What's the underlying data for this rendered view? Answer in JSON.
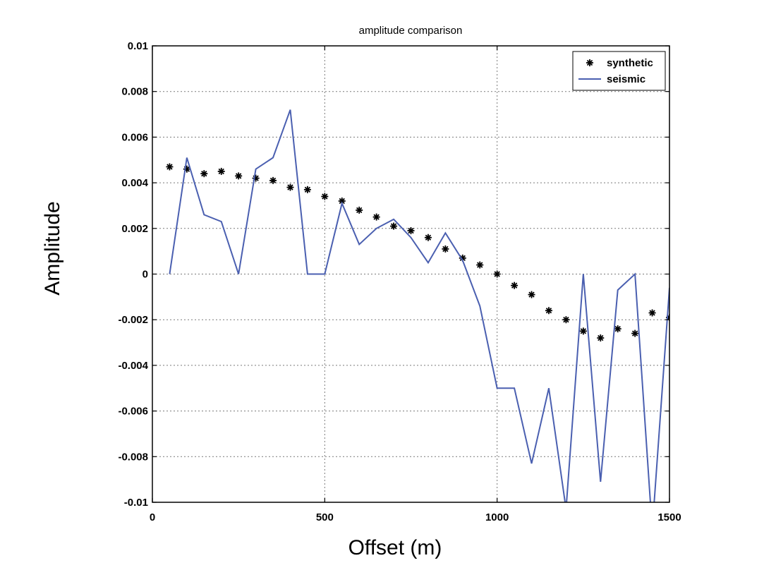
{
  "chart_data": {
    "type": "line",
    "title": "amplitude comparison",
    "xlabel": "Offset (m)",
    "ylabel": "Amplitude",
    "xlim": [
      0,
      1500
    ],
    "ylim": [
      -0.01,
      0.01
    ],
    "x_ticks": [
      0,
      500,
      1000,
      1500
    ],
    "x_tick_labels": [
      "0",
      "500",
      "1000",
      "1500"
    ],
    "y_ticks": [
      0.01,
      0.008,
      0.006,
      0.004,
      0.002,
      0,
      -0.002,
      -0.004,
      -0.006,
      -0.008,
      -0.01
    ],
    "y_tick_labels": [
      "0.01",
      "0.008",
      "0.006",
      "0.004",
      "0.002",
      "0",
      "-0.002",
      "-0.004",
      "-0.006",
      "-0.008",
      "-0.01"
    ],
    "grid": true,
    "legend_position": "top-right",
    "series": [
      {
        "name": "synthetic",
        "style": "markers",
        "marker": "*",
        "color": "#000000",
        "x": [
          50,
          100,
          150,
          200,
          250,
          300,
          350,
          400,
          450,
          500,
          550,
          600,
          650,
          700,
          750,
          800,
          850,
          900,
          950,
          1000,
          1050,
          1100,
          1150,
          1200,
          1250,
          1300,
          1350,
          1400,
          1450,
          1500
        ],
        "y": [
          0.0047,
          0.0046,
          0.0044,
          0.0045,
          0.0043,
          0.0042,
          0.0041,
          0.0038,
          0.0037,
          0.0034,
          0.0032,
          0.0028,
          0.0025,
          0.0021,
          0.0019,
          0.0016,
          0.0011,
          0.0007,
          0.0004,
          0.0,
          -0.0005,
          -0.0009,
          -0.0016,
          -0.002,
          -0.0025,
          -0.0028,
          -0.0024,
          -0.0026,
          -0.0017,
          -0.0019
        ]
      },
      {
        "name": "seismic",
        "style": "line",
        "color": "#4a5fb0",
        "x": [
          50,
          100,
          150,
          200,
          250,
          300,
          350,
          400,
          450,
          500,
          550,
          600,
          650,
          700,
          750,
          800,
          850,
          900,
          950,
          1000,
          1050,
          1100,
          1150,
          1200,
          1250,
          1300,
          1350,
          1400,
          1450,
          1500
        ],
        "y": [
          0.0,
          0.0051,
          0.0026,
          0.0023,
          0.0,
          0.0046,
          0.0051,
          0.0072,
          0.0,
          0.0,
          0.0031,
          0.0013,
          0.002,
          0.0024,
          0.0016,
          0.0005,
          0.0018,
          0.0006,
          -0.0014,
          -0.005,
          -0.005,
          -0.0083,
          -0.005,
          -0.0103,
          0.0,
          -0.0091,
          -0.0007,
          0.0,
          -0.0112,
          -0.0006
        ]
      }
    ]
  }
}
